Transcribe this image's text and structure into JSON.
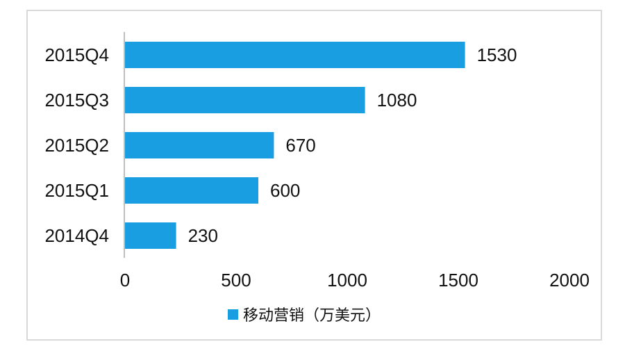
{
  "chart_data": {
    "type": "bar",
    "orientation": "horizontal",
    "categories": [
      "2015Q4",
      "2015Q3",
      "2015Q2",
      "2015Q1",
      "2014Q4"
    ],
    "series": [
      {
        "name": "移动营销（万美元）",
        "values": [
          1530,
          1080,
          670,
          600,
          230
        ],
        "color": "#1a9ee2"
      }
    ],
    "xlim": [
      0,
      2000
    ],
    "xticks": [
      0,
      500,
      1000,
      1500,
      2000
    ],
    "grid": false,
    "legend_position": "bottom"
  }
}
